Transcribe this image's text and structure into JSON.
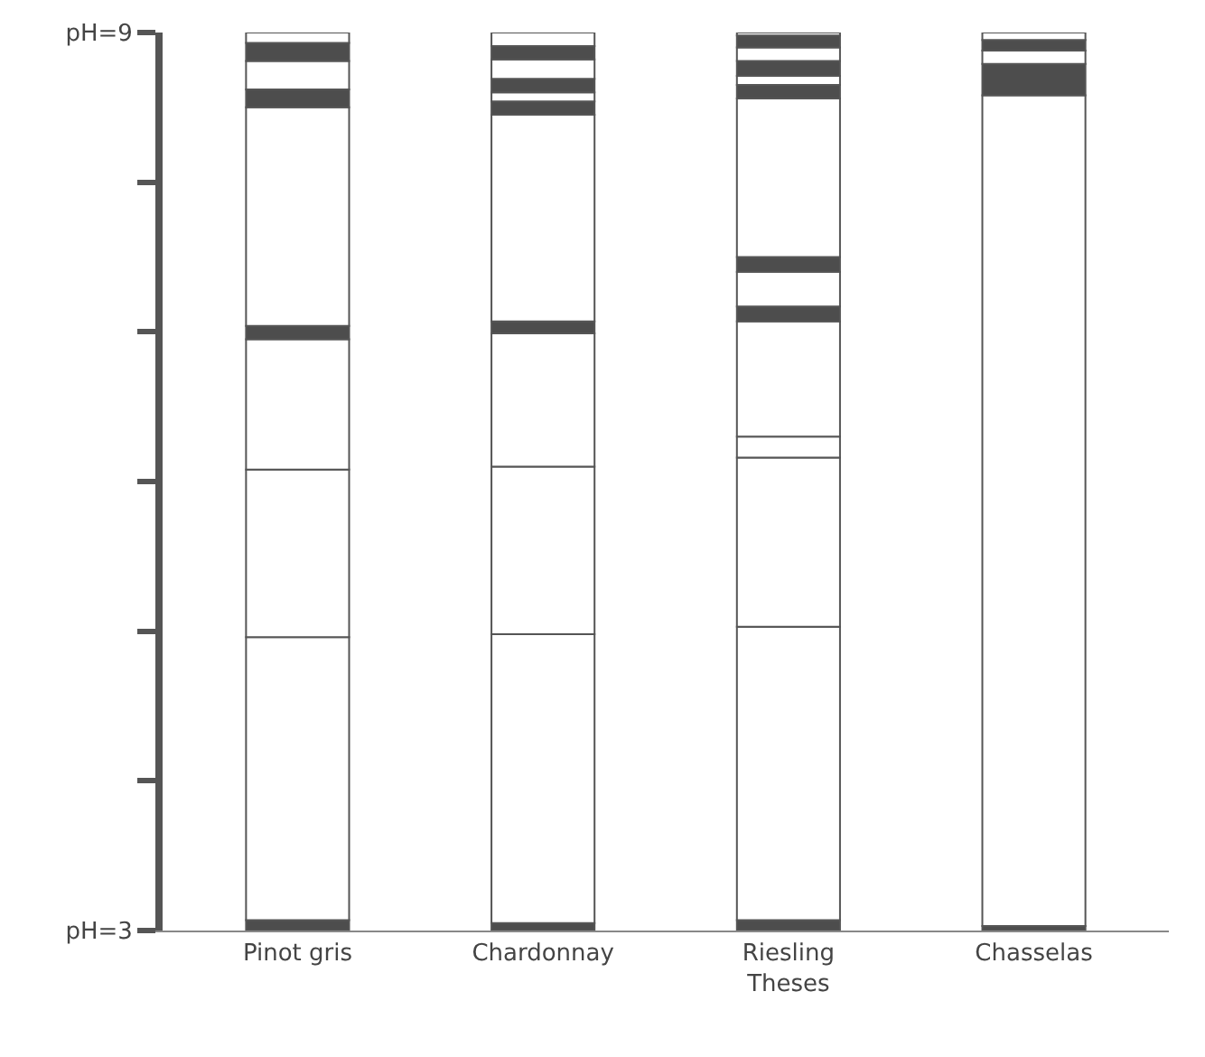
{
  "chart_data": {
    "type": "bar",
    "categories": [
      "Pinot gris",
      "Chardonnay",
      "Riesling\nTheses",
      "Chasselas"
    ],
    "ylim": [
      3,
      9
    ],
    "yticks": [
      {
        "value": 3,
        "label": "pH=3"
      },
      {
        "value": 4,
        "label": null
      },
      {
        "value": 5,
        "label": null
      },
      {
        "value": 6,
        "label": null
      },
      {
        "value": 7,
        "label": null
      },
      {
        "value": 8,
        "label": null
      },
      {
        "value": 9,
        "label": "pH=9"
      }
    ],
    "series": [
      {
        "values": [
          0.07,
          0.05,
          0.07,
          0.03
        ],
        "base": [
          3,
          3,
          3,
          3
        ],
        "colors": [
          "#4d4d4d",
          "#4d4d4d",
          "#4d4d4d",
          "#4d4d4d"
        ]
      },
      {
        "values": [
          1.89,
          1.93,
          1.96,
          5.55
        ],
        "base": [
          3.07,
          3.05,
          3.07,
          3.03
        ],
        "colors": [
          "#ffffff",
          "#ffffff",
          "#ffffff",
          "#ffffff"
        ]
      },
      {
        "values": [
          1.12,
          1.12,
          1.13,
          0.21
        ],
        "base": [
          4.96,
          4.98,
          5.03,
          8.58
        ],
        "colors": [
          "#ffffff",
          "#ffffff",
          "#ffffff",
          "#4d4d4d"
        ]
      },
      {
        "values": [
          0.87,
          0.89,
          0.14,
          0.09
        ],
        "base": [
          6.08,
          6.1,
          6.16,
          8.79
        ],
        "colors": [
          "#ffffff",
          "#ffffff",
          "#ffffff",
          "#ffffff"
        ]
      },
      {
        "values": [
          0.09,
          0.08,
          0.77,
          0.07
        ],
        "base": [
          6.95,
          6.99,
          6.3,
          8.88
        ],
        "colors": [
          "#4d4d4d",
          "#4d4d4d",
          "#ffffff",
          "#4d4d4d"
        ]
      },
      {
        "values": [
          1.46,
          1.38,
          0.1,
          0.05
        ],
        "base": [
          7.04,
          7.07,
          7.07,
          8.95
        ],
        "colors": [
          "#ffffff",
          "#ffffff",
          "#4d4d4d",
          "#ffffff"
        ]
      },
      {
        "values": [
          0.12,
          0.09,
          0.23,
          null
        ],
        "base": [
          8.5,
          8.45,
          7.17,
          null
        ],
        "colors": [
          "#4d4d4d",
          "#4d4d4d",
          "#ffffff",
          null
        ]
      },
      {
        "values": [
          0.19,
          0.06,
          0.1,
          null
        ],
        "base": [
          8.62,
          8.54,
          7.4,
          null
        ],
        "colors": [
          "#ffffff",
          "#ffffff",
          "#4d4d4d",
          null
        ]
      },
      {
        "values": [
          0.12,
          0.09,
          1.06,
          null
        ],
        "base": [
          8.81,
          8.6,
          7.5,
          null
        ],
        "colors": [
          "#4d4d4d",
          "#4d4d4d",
          "#ffffff",
          null
        ]
      },
      {
        "values": [
          0.07,
          0.13,
          0.09,
          null
        ],
        "base": [
          8.93,
          8.69,
          8.56,
          null
        ],
        "colors": [
          "#ffffff",
          "#ffffff",
          "#4d4d4d",
          null
        ]
      },
      {
        "values": [
          null,
          0.09,
          0.06,
          null
        ],
        "base": [
          null,
          8.82,
          8.65,
          null
        ],
        "colors": [
          null,
          "#4d4d4d",
          "#ffffff",
          null
        ]
      },
      {
        "values": [
          null,
          0.09,
          0.1,
          null
        ],
        "base": [
          null,
          8.91,
          8.71,
          null
        ],
        "colors": [
          null,
          "#ffffff",
          "#4d4d4d",
          null
        ]
      },
      {
        "values": [
          null,
          null,
          0.09,
          null
        ],
        "base": [
          null,
          null,
          8.81,
          null
        ],
        "colors": [
          null,
          null,
          "#ffffff",
          null
        ]
      },
      {
        "values": [
          null,
          null,
          0.08,
          null
        ],
        "base": [
          null,
          null,
          8.9,
          null
        ],
        "colors": [
          null,
          null,
          "#4d4d4d",
          null
        ]
      },
      {
        "values": [
          null,
          null,
          0.02,
          null
        ],
        "base": [
          null,
          null,
          8.98,
          null
        ],
        "colors": [
          null,
          null,
          "#ffffff",
          null
        ]
      }
    ]
  }
}
